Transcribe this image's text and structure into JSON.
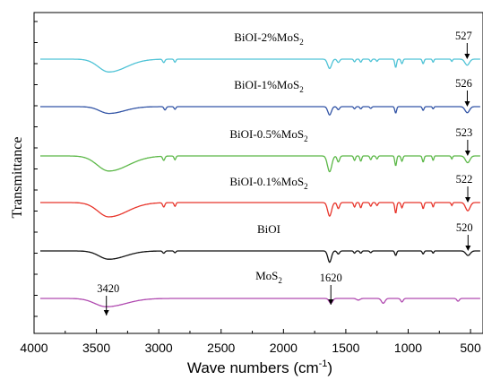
{
  "chart_data": {
    "type": "line",
    "title": "",
    "xlabel": "Wave numbers (cm⁻¹)",
    "xlabel_base": "Wave numbers (cm",
    "xlabel_sup": "-1",
    "xlabel_tail": ")",
    "ylabel": "Transmittance",
    "xlim": [
      4000,
      400
    ],
    "x_reversed": true,
    "x_ticks": [
      4000,
      3500,
      3000,
      2500,
      2000,
      1500,
      1000,
      500
    ],
    "y_ticks_labeled": false,
    "grid": false,
    "series": [
      {
        "name": "BiOI-2%MoS2",
        "label_base": "BiOI-2%MoS",
        "label_sub": "2",
        "color": "#4fc3d6",
        "baseline": 0,
        "peak_label": "527",
        "peak_x": 527,
        "features": [
          [
            3400,
            0.85,
            180
          ],
          [
            2960,
            0.22,
            12
          ],
          [
            2870,
            0.2,
            10
          ],
          [
            1630,
            0.62,
            22
          ],
          [
            1560,
            0.22,
            14
          ],
          [
            1430,
            0.18,
            10
          ],
          [
            1380,
            0.2,
            10
          ],
          [
            1300,
            0.16,
            10
          ],
          [
            1250,
            0.14,
            10
          ],
          [
            1100,
            0.55,
            10
          ],
          [
            1050,
            0.3,
            10
          ],
          [
            880,
            0.3,
            10
          ],
          [
            800,
            0.2,
            8
          ],
          [
            650,
            0.15,
            8
          ],
          [
            527,
            0.4,
            25
          ]
        ]
      },
      {
        "name": "BiOI-1%MoS2",
        "label_base": "BiOI-1%MoS",
        "label_sub": "2",
        "color": "#3355a6",
        "baseline": 1,
        "peak_label": "526",
        "peak_x": 526,
        "features": [
          [
            3400,
            0.45,
            160
          ],
          [
            2950,
            0.22,
            12
          ],
          [
            2870,
            0.18,
            10
          ],
          [
            1630,
            0.55,
            20
          ],
          [
            1560,
            0.2,
            14
          ],
          [
            1430,
            0.15,
            10
          ],
          [
            1380,
            0.15,
            10
          ],
          [
            1300,
            0.12,
            10
          ],
          [
            1100,
            0.42,
            10
          ],
          [
            880,
            0.25,
            10
          ],
          [
            800,
            0.15,
            8
          ],
          [
            526,
            0.4,
            25
          ]
        ]
      },
      {
        "name": "BiOI-0.5%MoS2",
        "label_base": "BiOI-0.5%MoS",
        "label_sub": "2",
        "color": "#5cb848",
        "baseline": 2,
        "peak_label": "523",
        "peak_x": 523,
        "features": [
          [
            3400,
            1.0,
            200
          ],
          [
            2960,
            0.28,
            12
          ],
          [
            2870,
            0.25,
            10
          ],
          [
            1630,
            1.05,
            24
          ],
          [
            1560,
            0.4,
            14
          ],
          [
            1430,
            0.3,
            10
          ],
          [
            1380,
            0.35,
            10
          ],
          [
            1300,
            0.25,
            10
          ],
          [
            1250,
            0.2,
            10
          ],
          [
            1100,
            0.65,
            10
          ],
          [
            1050,
            0.35,
            10
          ],
          [
            880,
            0.4,
            10
          ],
          [
            800,
            0.3,
            8
          ],
          [
            650,
            0.2,
            8
          ],
          [
            523,
            0.45,
            25
          ]
        ]
      },
      {
        "name": "BiOI-0.1%MoS2",
        "label_base": "BiOI-0.1%MoS",
        "label_sub": "2",
        "color": "#e8352b",
        "baseline": 3,
        "peak_label": "522",
        "peak_x": 522,
        "features": [
          [
            3400,
            0.95,
            190
          ],
          [
            2960,
            0.28,
            12
          ],
          [
            2870,
            0.25,
            10
          ],
          [
            1630,
            0.9,
            22
          ],
          [
            1560,
            0.4,
            14
          ],
          [
            1430,
            0.3,
            10
          ],
          [
            1380,
            0.35,
            10
          ],
          [
            1300,
            0.25,
            10
          ],
          [
            1250,
            0.2,
            10
          ],
          [
            1100,
            0.7,
            10
          ],
          [
            1050,
            0.35,
            10
          ],
          [
            880,
            0.4,
            10
          ],
          [
            800,
            0.3,
            8
          ],
          [
            650,
            0.2,
            8
          ],
          [
            522,
            0.55,
            25
          ]
        ]
      },
      {
        "name": "BiOI",
        "label_base": "BiOI",
        "label_sub": "",
        "color": "#111111",
        "baseline": 4,
        "peak_label": "520",
        "peak_x": 520,
        "features": [
          [
            3400,
            0.55,
            170
          ],
          [
            2960,
            0.15,
            12
          ],
          [
            2870,
            0.12,
            10
          ],
          [
            1630,
            0.75,
            20
          ],
          [
            1560,
            0.2,
            14
          ],
          [
            1430,
            0.15,
            10
          ],
          [
            1380,
            0.15,
            10
          ],
          [
            1300,
            0.12,
            10
          ],
          [
            1100,
            0.3,
            10
          ],
          [
            880,
            0.2,
            10
          ],
          [
            800,
            0.15,
            8
          ],
          [
            520,
            0.3,
            25
          ]
        ]
      },
      {
        "name": "MoS2",
        "label_base": "MoS",
        "label_sub": "2",
        "color": "#b04ab0",
        "baseline": 5,
        "peak_label": "",
        "peak_x": null,
        "extra_peaks": [
          {
            "label": "3420",
            "x": 3420
          },
          {
            "label": "1620",
            "x": 1620
          }
        ],
        "features": [
          [
            3420,
            0.6,
            200
          ],
          [
            1620,
            0.35,
            20
          ],
          [
            1400,
            0.12,
            20
          ],
          [
            1200,
            0.35,
            20
          ],
          [
            1050,
            0.25,
            14
          ],
          [
            600,
            0.2,
            14
          ]
        ]
      }
    ]
  }
}
